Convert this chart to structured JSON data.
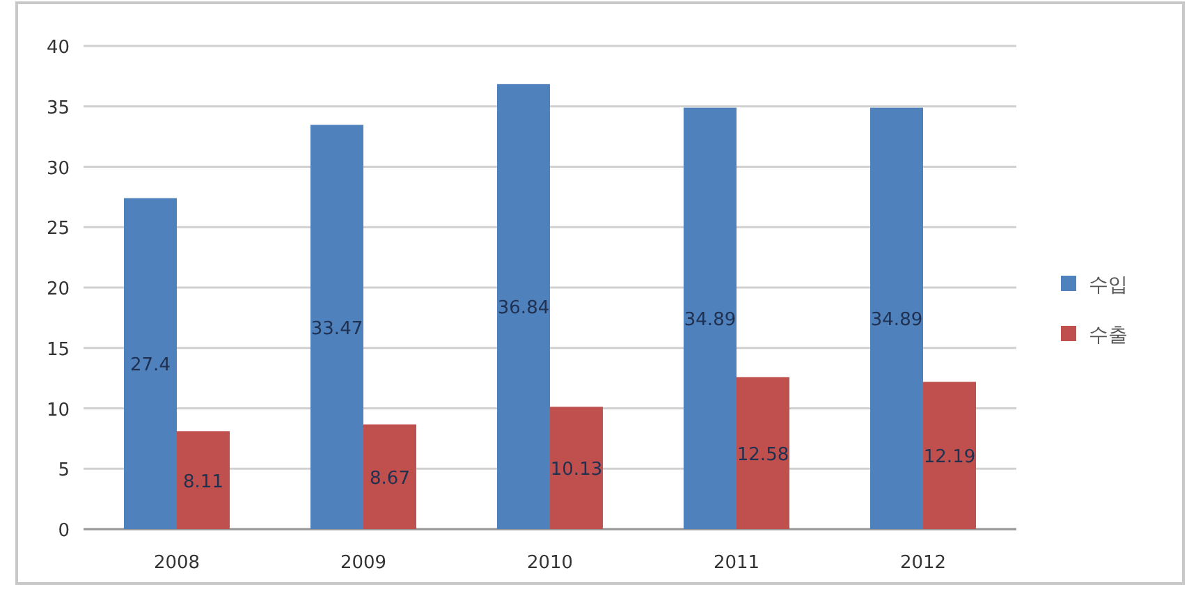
{
  "chart_data": {
    "type": "bar",
    "categories": [
      "2008",
      "2009",
      "2010",
      "2011",
      "2012"
    ],
    "series": [
      {
        "name": "수입",
        "color": "#4f81bd",
        "values": [
          27.4,
          33.47,
          36.84,
          34.89,
          34.89
        ]
      },
      {
        "name": "수출",
        "color": "#c0504d",
        "values": [
          8.11,
          8.67,
          10.13,
          12.58,
          12.19
        ]
      }
    ],
    "ylim": [
      0,
      40
    ],
    "yticks": [
      0,
      5,
      10,
      15,
      20,
      25,
      30,
      35,
      40
    ],
    "grid": "y",
    "legend": "right",
    "data_labels": true
  }
}
